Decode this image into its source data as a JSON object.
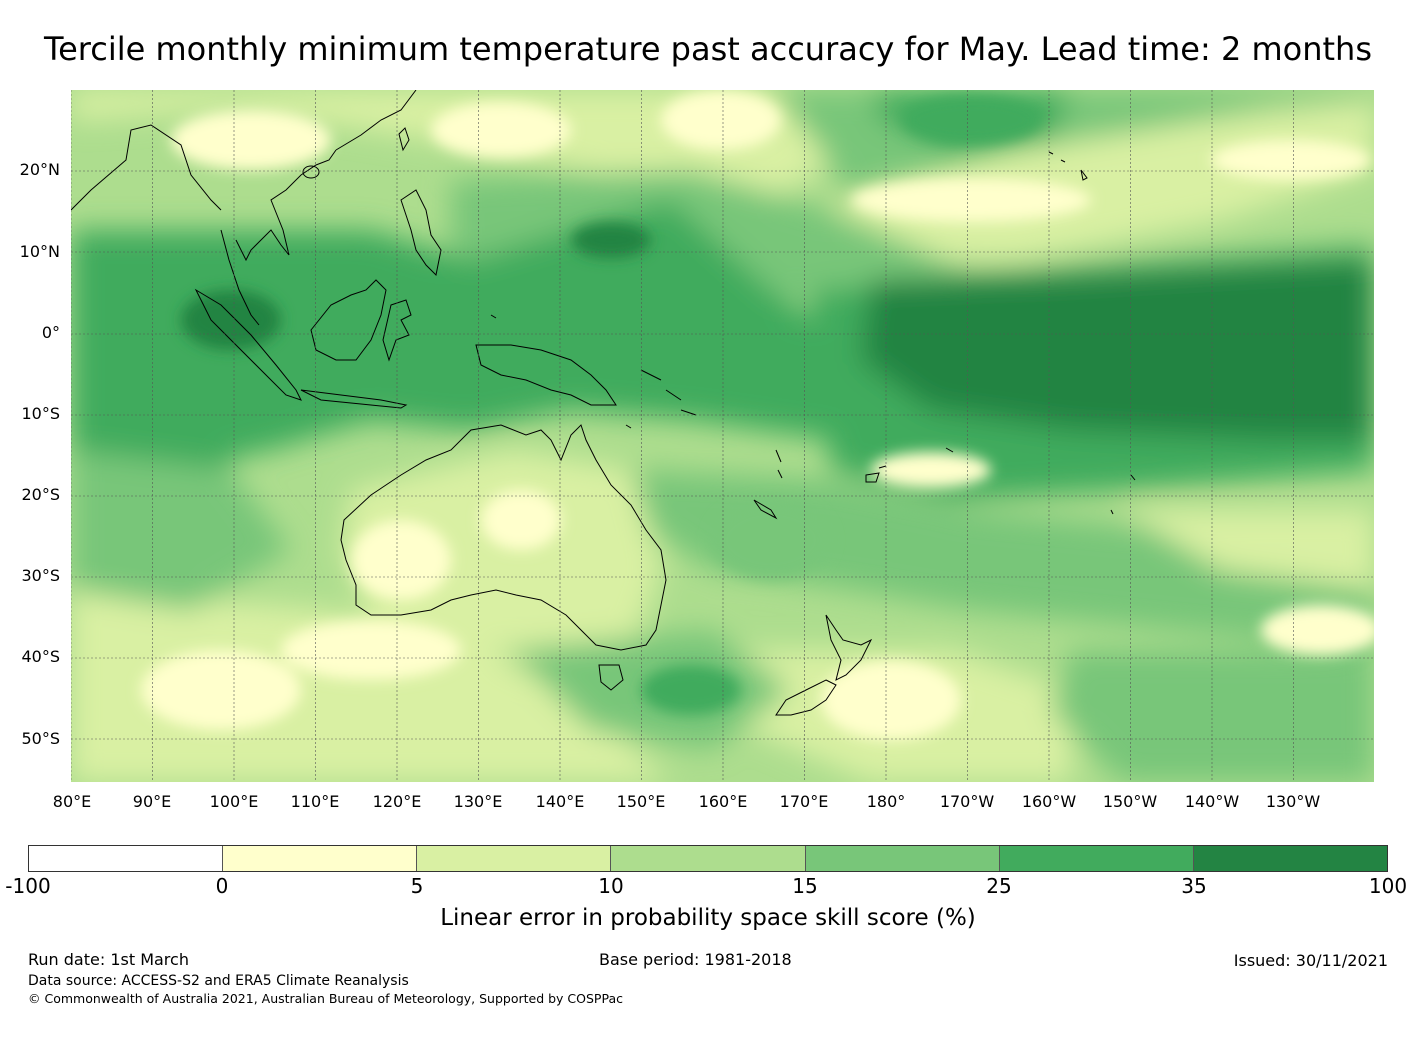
{
  "title": "Tercile monthly minimum temperature past accuracy for May. Lead time: 2 months",
  "map": {
    "lon_labels": [
      "80°E",
      "90°E",
      "100°E",
      "110°E",
      "120°E",
      "130°E",
      "140°E",
      "150°E",
      "160°E",
      "170°E",
      "180°",
      "170°W",
      "160°W",
      "150°W",
      "140°W",
      "130°W"
    ],
    "lat_labels": [
      "20°N",
      "10°N",
      "0°",
      "10°S",
      "20°S",
      "30°S",
      "40°S",
      "50°S"
    ],
    "base_color": "#9fd88a",
    "region_colors": {
      "deep_green": "#238443",
      "mid_green": "#41ab5d",
      "green": "#78c679",
      "light_green": "#addd8e",
      "pale_green": "#d9f0a3",
      "cream": "#ffffcc",
      "white": "#ffffff"
    },
    "coastline_color": "#000000",
    "gridline_color": "#555555"
  },
  "colorbar": {
    "ticks": [
      "-100",
      "0",
      "5",
      "10",
      "15",
      "25",
      "35",
      "100"
    ],
    "colors": [
      "#ffffff",
      "#ffffcc",
      "#d9f0a3",
      "#addd8e",
      "#78c679",
      "#41ab5d",
      "#238443"
    ],
    "label": "Linear error in probability space skill score (%)"
  },
  "footer": {
    "run_date": "Run date: 1st March",
    "base_period": "Base period: 1981-2018",
    "issued": "Issued: 30/11/2021",
    "data_source": "Data source: ACCESS-S2 and ERA5 Climate Reanalysis",
    "copyright": "© Commonwealth of Australia 2021, Australian Bureau of Meteorology, Supported by COSPPac"
  }
}
